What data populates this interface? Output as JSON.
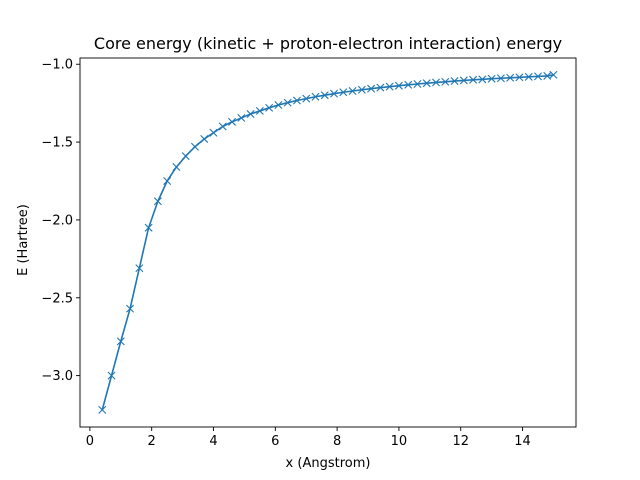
{
  "chart_data": {
    "type": "line",
    "title": "Core energy (kinetic + proton-electron interaction) energy",
    "xlabel": "x (Angstrom)",
    "ylabel": "E (Hartree)",
    "xlim": [
      -0.32,
      15.73
    ],
    "ylim": [
      -3.33,
      -0.96
    ],
    "xticks": [
      0,
      2,
      4,
      6,
      8,
      10,
      12,
      14
    ],
    "yticks": [
      -3.0,
      -2.5,
      -2.0,
      -1.5,
      -1.0
    ],
    "xtick_labels": [
      "0",
      "2",
      "4",
      "6",
      "8",
      "10",
      "12",
      "14"
    ],
    "ytick_labels": [
      "−3.0",
      "−2.5",
      "−2.0",
      "−1.5",
      "−1.0"
    ],
    "grid": false,
    "marker": "x",
    "color": "#1f77b4",
    "series": [
      {
        "x": [
          0.4,
          0.7,
          1.0,
          1.3,
          1.6,
          1.9,
          2.2,
          2.5,
          2.8,
          3.1,
          3.4,
          3.7,
          4.0,
          4.3,
          4.6,
          4.9,
          5.2,
          5.5,
          5.8,
          6.1,
          6.4,
          6.7,
          7.0,
          7.3,
          7.6,
          7.9,
          8.2,
          8.5,
          8.8,
          9.1,
          9.4,
          9.7,
          10.0,
          10.3,
          10.6,
          10.9,
          11.2,
          11.5,
          11.8,
          12.1,
          12.4,
          12.7,
          13.0,
          13.3,
          13.6,
          13.9,
          14.2,
          14.5,
          14.8,
          15.0
        ],
        "y": [
          -3.22,
          -3.0,
          -2.78,
          -2.57,
          -2.31,
          -2.05,
          -1.88,
          -1.75,
          -1.66,
          -1.59,
          -1.53,
          -1.48,
          -1.44,
          -1.4,
          -1.37,
          -1.345,
          -1.32,
          -1.3,
          -1.28,
          -1.262,
          -1.247,
          -1.233,
          -1.221,
          -1.209,
          -1.199,
          -1.189,
          -1.18,
          -1.172,
          -1.164,
          -1.157,
          -1.15,
          -1.144,
          -1.138,
          -1.132,
          -1.127,
          -1.122,
          -1.117,
          -1.113,
          -1.108,
          -1.104,
          -1.1,
          -1.097,
          -1.093,
          -1.09,
          -1.087,
          -1.084,
          -1.081,
          -1.078,
          -1.075,
          -1.068
        ]
      }
    ]
  }
}
